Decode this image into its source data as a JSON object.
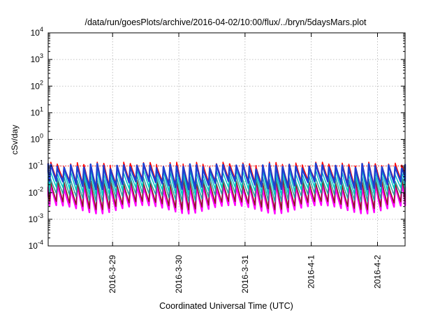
{
  "chart_data": {
    "type": "line",
    "title": "/data/run/goesPlots/archive/2016-04-02/10:00/flux/../bryn/5daysMars.plot",
    "xlabel": "Coordinated Universal Time (UTC)",
    "ylabel": "cSv/day",
    "y_scale": "log",
    "ylim": [
      0.0001,
      10000
    ],
    "xlim": [
      "2016-03-28T00:40",
      "2016-04-02T10:00"
    ],
    "y_ticks": [
      {
        "value": 0.0001,
        "base": "10",
        "exp": "-4"
      },
      {
        "value": 0.001,
        "base": "10",
        "exp": "-3"
      },
      {
        "value": 0.01,
        "base": "10",
        "exp": "-2"
      },
      {
        "value": 0.1,
        "base": "10",
        "exp": "-1"
      },
      {
        "value": 1,
        "base": "10",
        "exp": "0"
      },
      {
        "value": 10,
        "base": "10",
        "exp": "1"
      },
      {
        "value": 100,
        "base": "10",
        "exp": "2"
      },
      {
        "value": 1000,
        "base": "10",
        "exp": "3"
      },
      {
        "value": 10000,
        "base": "10",
        "exp": "4"
      }
    ],
    "x_ticks": [
      {
        "value": "2016-03-29T00:00",
        "label": "2016-3-29"
      },
      {
        "value": "2016-03-30T00:00",
        "label": "2016-3-30"
      },
      {
        "value": "2016-03-31T00:00",
        "label": "2016-3-31"
      },
      {
        "value": "2016-04-01T00:00",
        "label": "2016-4-1"
      },
      {
        "value": "2016-04-02T00:00",
        "label": "2016-4-2"
      }
    ],
    "grid": true,
    "legend": "none",
    "pattern": {
      "description": "sawtooth: sharp rise each orbit then gradual decay",
      "peaks_per_day": 10,
      "reference_level": 0.1
    },
    "series": [
      {
        "color": "#ff0000",
        "peak": 0.12,
        "trough": 0.025
      },
      {
        "color": "#1f3fd0",
        "peak": 0.1,
        "trough": 0.02
      },
      {
        "color": "#00c8c8",
        "peak": 0.06,
        "trough": 0.012
      },
      {
        "color": "#2aa0a0",
        "peak": 0.035,
        "trough": 0.007
      },
      {
        "color": "#8b1a1a",
        "peak": 0.025,
        "trough": 0.0035
      },
      {
        "color": "#ff00ff",
        "peak": 0.018,
        "trough": 0.0025
      }
    ],
    "colors": {
      "reference_line": "#ff0000",
      "grid": "#b0b0b0",
      "axis": "#000000"
    }
  }
}
